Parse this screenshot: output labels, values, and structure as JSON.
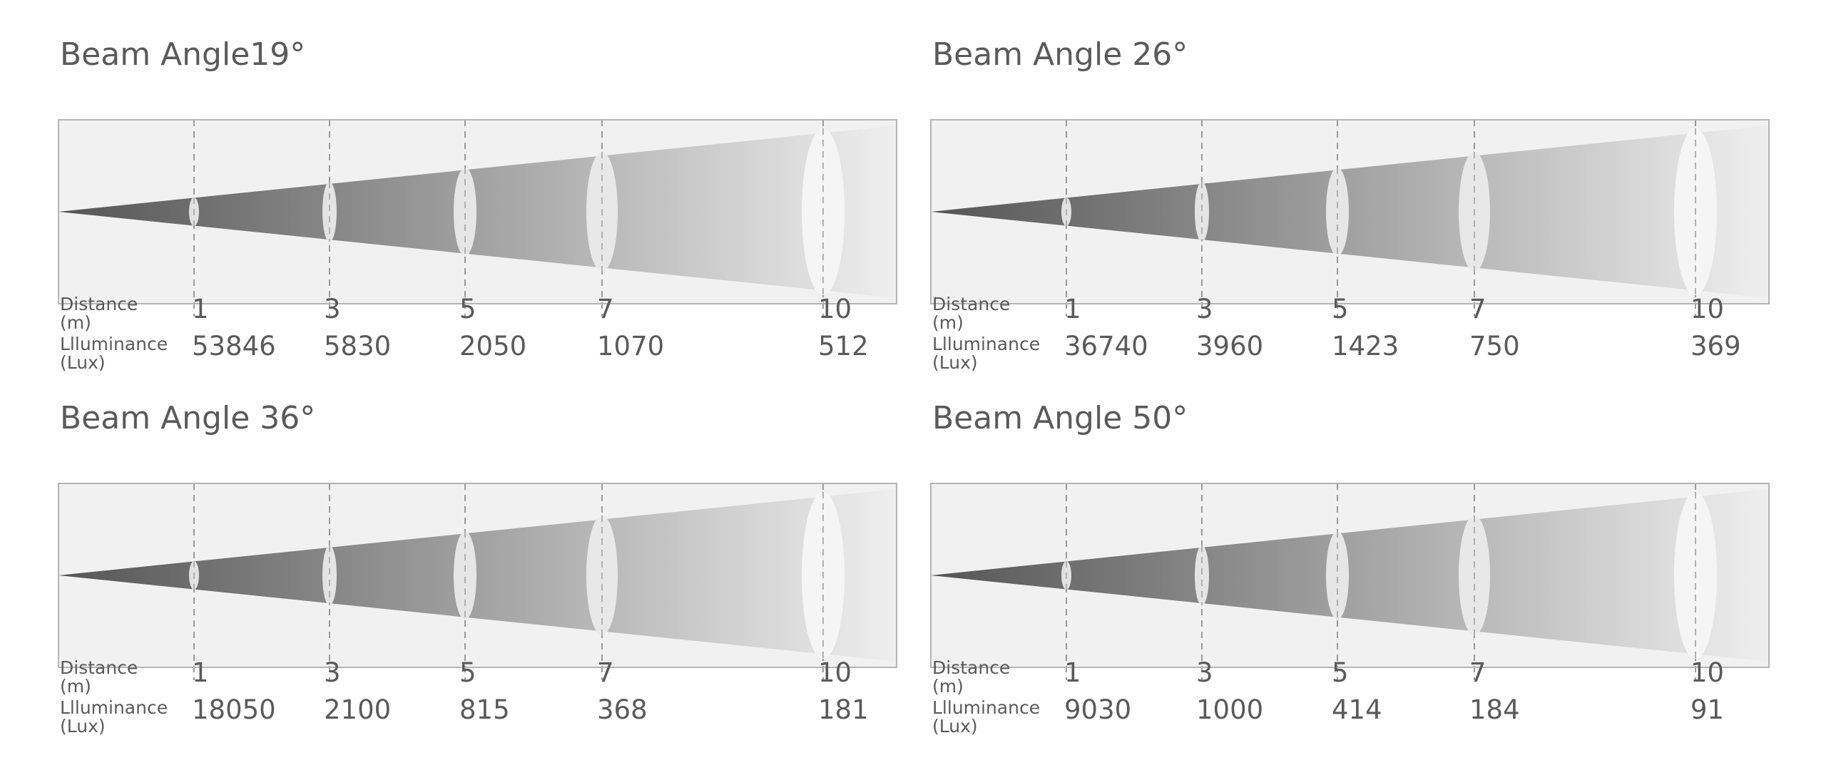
{
  "panels": [
    {
      "title": "Beam Angle19°",
      "distances": [
        "1",
        "3",
        "5",
        "7",
        "10"
      ],
      "lux": [
        "53846",
        "5830",
        "2050",
        "1070",
        "512"
      ]
    },
    {
      "title": "Beam Angle 26°",
      "distances": [
        "1",
        "3",
        "5",
        "7",
        "10"
      ],
      "lux": [
        "36740",
        "3960",
        "1423",
        "750",
        "369"
      ]
    },
    {
      "title": "Beam Angle 36°",
      "distances": [
        "1",
        "3",
        "5",
        "7",
        "10"
      ],
      "lux": [
        "18050",
        "2100",
        "815",
        "368",
        "181"
      ]
    },
    {
      "title": "Beam Angle 50°",
      "distances": [
        "1",
        "3",
        "5",
        "7",
        "10"
      ],
      "lux": [
        "9030",
        "1000",
        "414",
        "184",
        "91"
      ]
    }
  ],
  "labels": {
    "distance_line1": "Distance",
    "distance_line2": "(m)",
    "lux_line1": "Llluminance",
    "lux_line2": "(Lux)"
  },
  "colors": {
    "panel_bg": "#f1f1f2",
    "frame": "#b5b5b5",
    "beam_dark": "#555555",
    "beam_light": "#efefef",
    "text": "#5a5a5a"
  }
}
